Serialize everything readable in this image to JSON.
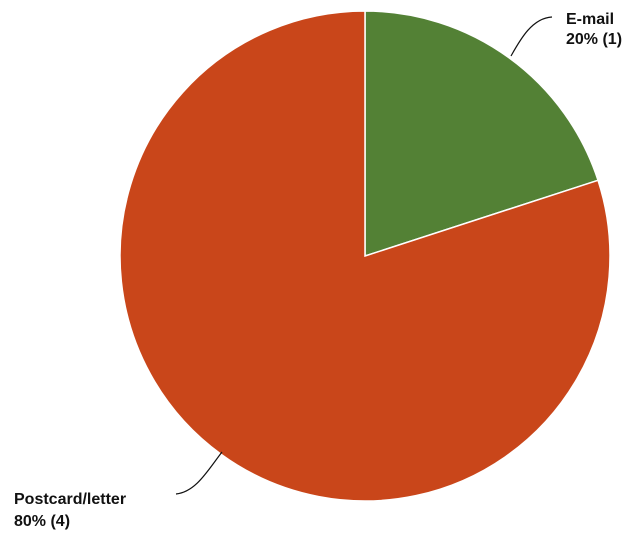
{
  "chart_data": {
    "type": "pie",
    "title": "",
    "start_angle_deg": 0,
    "direction": "clockwise",
    "slices": [
      {
        "label": "E-mail",
        "percent_label": "20% (1)",
        "value": 1,
        "percent": 20,
        "color": "#538135"
      },
      {
        "label": "Postcard/letter",
        "percent_label": "80% (4)",
        "value": 4,
        "percent": 80,
        "color": "#C9461A"
      }
    ]
  }
}
